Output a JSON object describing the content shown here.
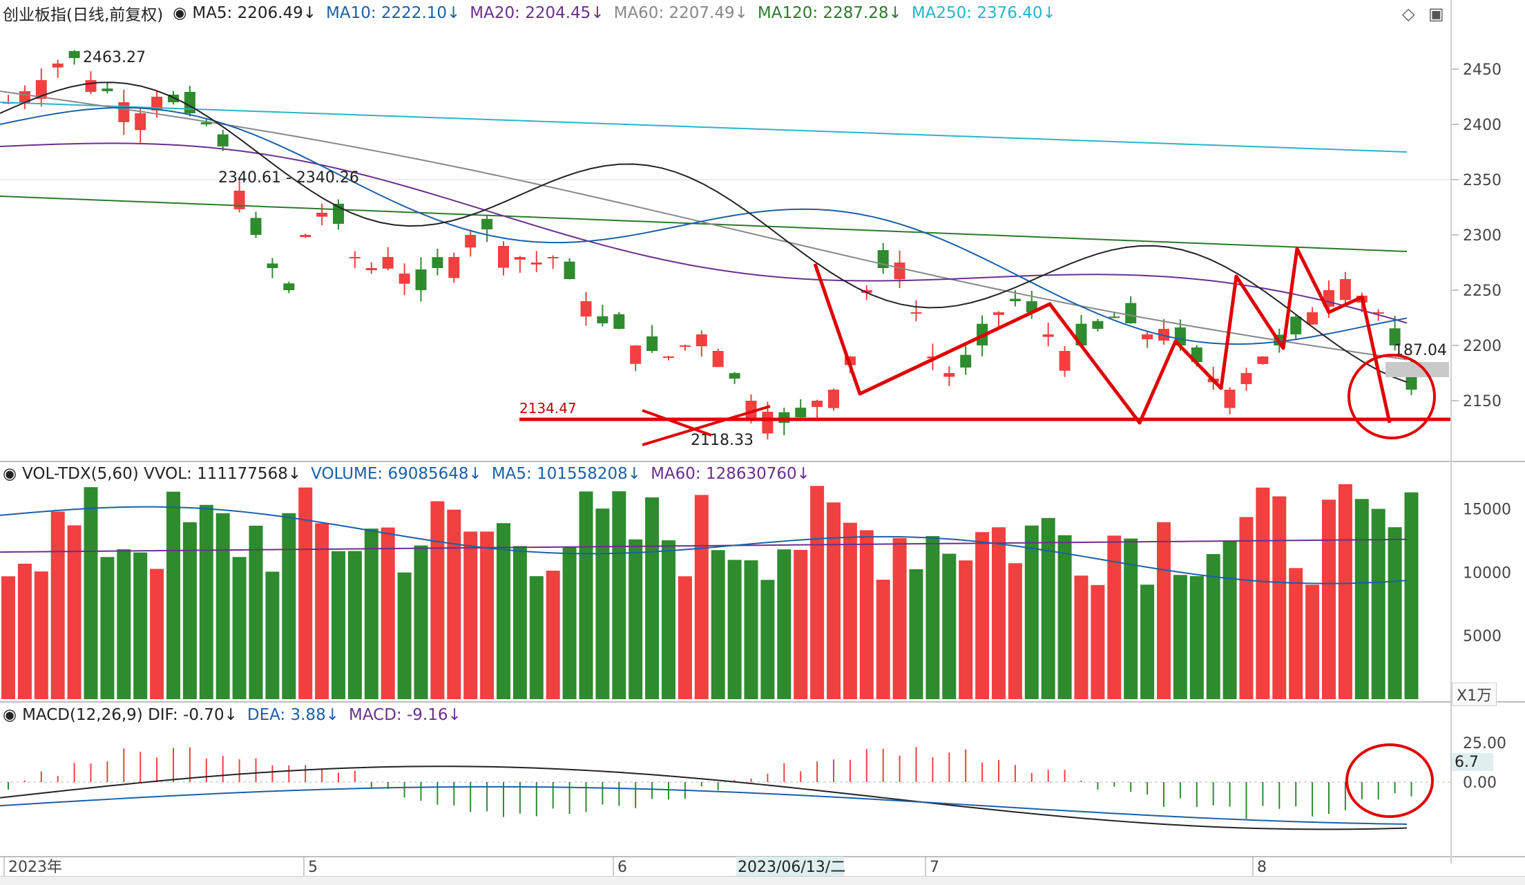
{
  "main_panel": {
    "title": "创业板指(日线,前复权)",
    "indicators": [
      {
        "text": "MA5: 2206.49",
        "color": "#222222"
      },
      {
        "text": "MA10: 2222.10",
        "color": "#1a5fa8"
      },
      {
        "text": "MA20: 2204.45",
        "color": "#6b2f8f"
      },
      {
        "text": "MA60: 2207.49",
        "color": "#888888"
      },
      {
        "text": "MA120: 2287.28",
        "color": "#2b7a2b"
      },
      {
        "text": "MA250: 2376.40",
        "color": "#27b5c9"
      }
    ],
    "annotations": {
      "high": "2463.27",
      "gap": "2340.61 - 2340.26",
      "support": "2134.47",
      "low": "2118.33",
      "last": "187.04"
    },
    "y_ticks": [
      "2450",
      "2400",
      "2350",
      "2300",
      "2250",
      "2200",
      "2150"
    ]
  },
  "volume_panel": {
    "indicators": [
      {
        "text": "VOL-TDX(5,60) VVOL: 111177568",
        "color": "#222222"
      },
      {
        "text": "VOLUME: 69085648",
        "color": "#1a5fa8"
      },
      {
        "text": "MA5: 101558208",
        "color": "#1a5fa8"
      },
      {
        "text": "MA60: 128630760",
        "color": "#6b2f8f"
      }
    ],
    "y_ticks": [
      "15000",
      "10000",
      "5000"
    ],
    "unit": "X1万"
  },
  "macd_panel": {
    "indicators": [
      {
        "text": "MACD(12,26,9) DIF: -0.70",
        "color": "#222222"
      },
      {
        "text": "DEA: 3.88",
        "color": "#1a5fa8"
      },
      {
        "text": "MACD: -9.16",
        "color": "#6b2f8f"
      }
    ],
    "y_ticks": [
      "25.00",
      "0.00"
    ],
    "current": "6.7"
  },
  "x_axis": {
    "labels": [
      "2023年",
      "5",
      "6",
      "7",
      "8"
    ],
    "highlight": "2023/06/13/二"
  },
  "colors": {
    "up": "#f04040",
    "down": "#2e8b2e",
    "markup": "#e00000"
  }
}
